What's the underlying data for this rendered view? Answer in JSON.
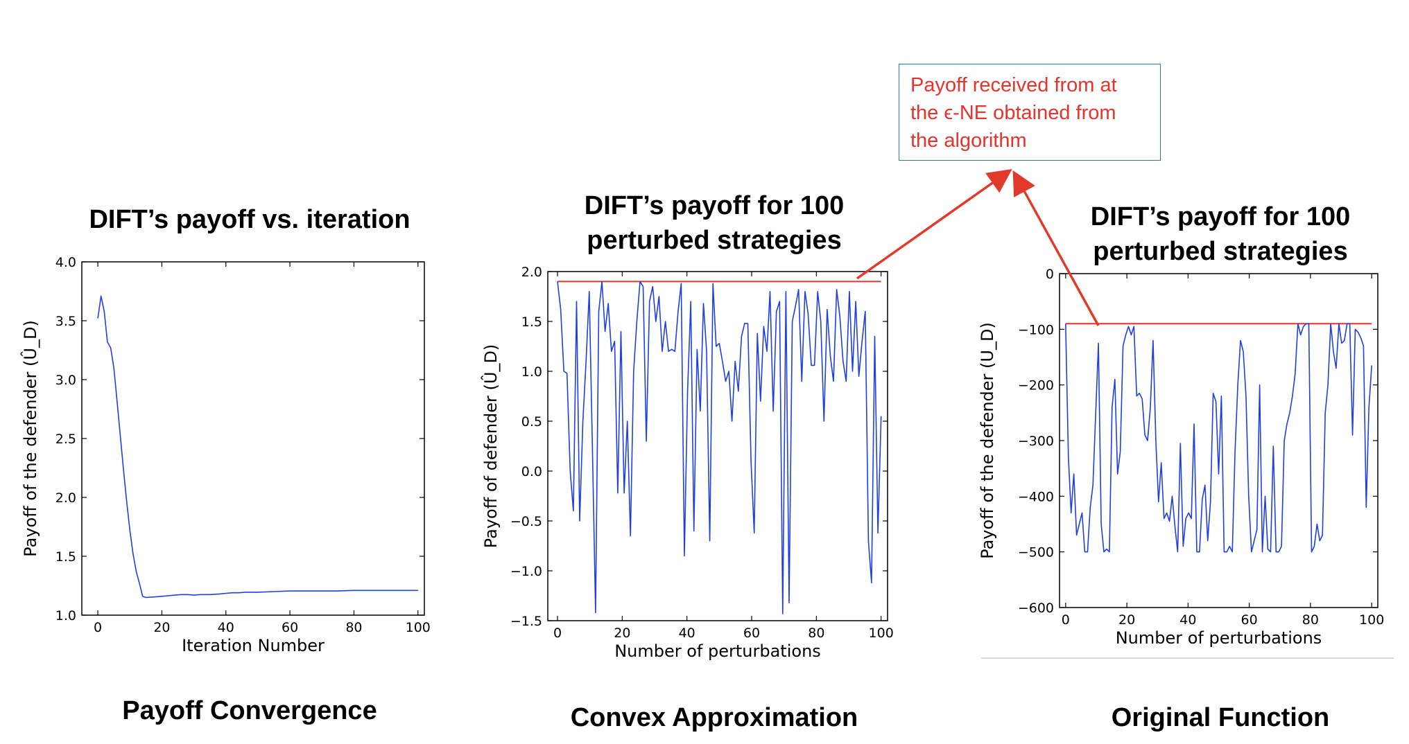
{
  "chart_data": [
    {
      "type": "line",
      "title": "DIFT’s payoff vs. iteration",
      "caption": "Payoff Convergence",
      "xlabel": "Iteration Number",
      "ylabel": "Payoff of the defender (Û_D)",
      "xlim": [
        -5,
        102
      ],
      "ylim": [
        1.0,
        4.0
      ],
      "xticks": [
        "0",
        "20",
        "40",
        "60",
        "80",
        "100"
      ],
      "yticks": [
        "1.0",
        "1.5",
        "2.0",
        "2.5",
        "3.0",
        "3.5",
        "4.0"
      ],
      "series": [
        {
          "color": "#1f3fe0",
          "x": [
            0,
            1,
            2,
            3,
            4,
            5,
            6,
            7,
            8,
            9,
            10,
            11,
            12,
            13,
            14,
            15,
            18,
            20,
            22,
            24,
            26,
            28,
            30,
            32,
            35,
            38,
            40,
            42,
            44,
            46,
            48,
            50,
            55,
            60,
            65,
            70,
            75,
            80,
            85,
            90,
            95,
            100
          ],
          "y": [
            3.52,
            3.71,
            3.58,
            3.32,
            3.27,
            3.1,
            2.82,
            2.53,
            2.24,
            1.97,
            1.72,
            1.52,
            1.37,
            1.27,
            1.16,
            1.15,
            1.155,
            1.16,
            1.165,
            1.17,
            1.175,
            1.175,
            1.17,
            1.175,
            1.175,
            1.18,
            1.185,
            1.19,
            1.19,
            1.195,
            1.195,
            1.195,
            1.2,
            1.205,
            1.205,
            1.205,
            1.205,
            1.21,
            1.21,
            1.21,
            1.21,
            1.21
          ]
        }
      ]
    },
    {
      "type": "line",
      "title": "DIFT’s payoff for 100 perturbed strategies",
      "caption": "Convex Approximation",
      "xlabel": "Number of perturbations",
      "ylabel": "Payoff of defender (Û_D)",
      "xlim": [
        -3,
        102
      ],
      "ylim": [
        -1.5,
        2.0
      ],
      "xticks": [
        "0",
        "20",
        "40",
        "60",
        "80",
        "100"
      ],
      "yticks": [
        "−1.5",
        "−1.0",
        "−0.5",
        "0.0",
        "0.5",
        "1.0",
        "1.5",
        "2.0"
      ],
      "reference_line": {
        "y": 1.9,
        "color": "#e8322c"
      },
      "series": [
        {
          "color": "#1f3fe0",
          "y": [
            1.9,
            1.62,
            1.0,
            0.98,
            0.0,
            -0.4,
            1.7,
            -0.5,
            0.5,
            1.1,
            1.8,
            0.25,
            -1.42,
            1.6,
            1.9,
            1.4,
            1.68,
            1.2,
            1.3,
            -0.22,
            1.4,
            -0.22,
            0.5,
            -0.65,
            1.0,
            1.5,
            1.9,
            1.85,
            0.3,
            1.7,
            1.85,
            1.5,
            1.75,
            1.2,
            1.5,
            1.2,
            1.22,
            1.2,
            1.6,
            1.88,
            -0.85,
            0.8,
            1.7,
            -0.6,
            1.22,
            0.6,
            1.68,
            1.2,
            -0.7,
            1.88,
            1.25,
            1.28,
            1.1,
            0.9,
            1.0,
            0.5,
            1.1,
            0.8,
            1.35,
            1.48,
            1.48,
            0.1,
            -0.62,
            1.38,
            0.7,
            1.45,
            1.2,
            1.8,
            0.6,
            1.6,
            1.7,
            -1.43,
            1.8,
            -1.32,
            1.5,
            1.65,
            1.82,
            0.9,
            1.8,
            1.58,
            1.06,
            1.06,
            1.8,
            1.5,
            0.5,
            1.62,
            1.15,
            0.9,
            1.82,
            1.55,
            1.1,
            0.9,
            1.8,
            1.0,
            1.7,
            0.95,
            1.3,
            1.6,
            -0.7,
            -1.12,
            1.35,
            -0.62,
            0.55
          ]
        }
      ]
    },
    {
      "type": "line",
      "title": "DIFT’s payoff for 100 perturbed strategies",
      "caption": "Original Function",
      "xlabel": "Number of perturbations",
      "ylabel": "Payoff of the defender (U_D)",
      "xlim": [
        -2,
        102
      ],
      "ylim": [
        -600,
        0
      ],
      "xticks": [
        "0",
        "20",
        "40",
        "60",
        "80",
        "100"
      ],
      "yticks": [
        "−600",
        "−500",
        "−400",
        "−300",
        "−200",
        "−100",
        "0"
      ],
      "reference_line": {
        "y": -90,
        "color": "#e8322c"
      },
      "series": [
        {
          "color": "#1f3fe0",
          "y": [
            -90,
            -330,
            -430,
            -360,
            -470,
            -450,
            -430,
            -500,
            -500,
            -420,
            -380,
            -250,
            -125,
            -450,
            -500,
            -495,
            -500,
            -240,
            -190,
            -360,
            -320,
            -130,
            -110,
            -95,
            -110,
            -95,
            -220,
            -215,
            -225,
            -290,
            -300,
            -240,
            -120,
            -300,
            -410,
            -340,
            -440,
            -430,
            -445,
            -400,
            -455,
            -500,
            -305,
            -490,
            -440,
            -430,
            -440,
            -270,
            -500,
            -500,
            -405,
            -380,
            -480,
            -410,
            -215,
            -230,
            -360,
            -220,
            -500,
            -500,
            -490,
            -500,
            -320,
            -200,
            -120,
            -140,
            -220,
            -400,
            -500,
            -480,
            -460,
            -200,
            -500,
            -400,
            -495,
            -500,
            -310,
            -500,
            -500,
            -490,
            -300,
            -270,
            -250,
            -220,
            -180,
            -90,
            -110,
            -95,
            -90,
            -90,
            -500,
            -490,
            -450,
            -480,
            -470,
            -250,
            -200,
            -90,
            -140,
            -170,
            -90,
            -125,
            -120,
            -90,
            -90,
            -290,
            -100,
            -105,
            -115,
            -130,
            -420,
            -240,
            -165
          ]
        }
      ]
    }
  ],
  "annotation": {
    "lines": [
      "Payoff received from at",
      "the ϵ-NE obtained from",
      "the algorithm"
    ]
  }
}
